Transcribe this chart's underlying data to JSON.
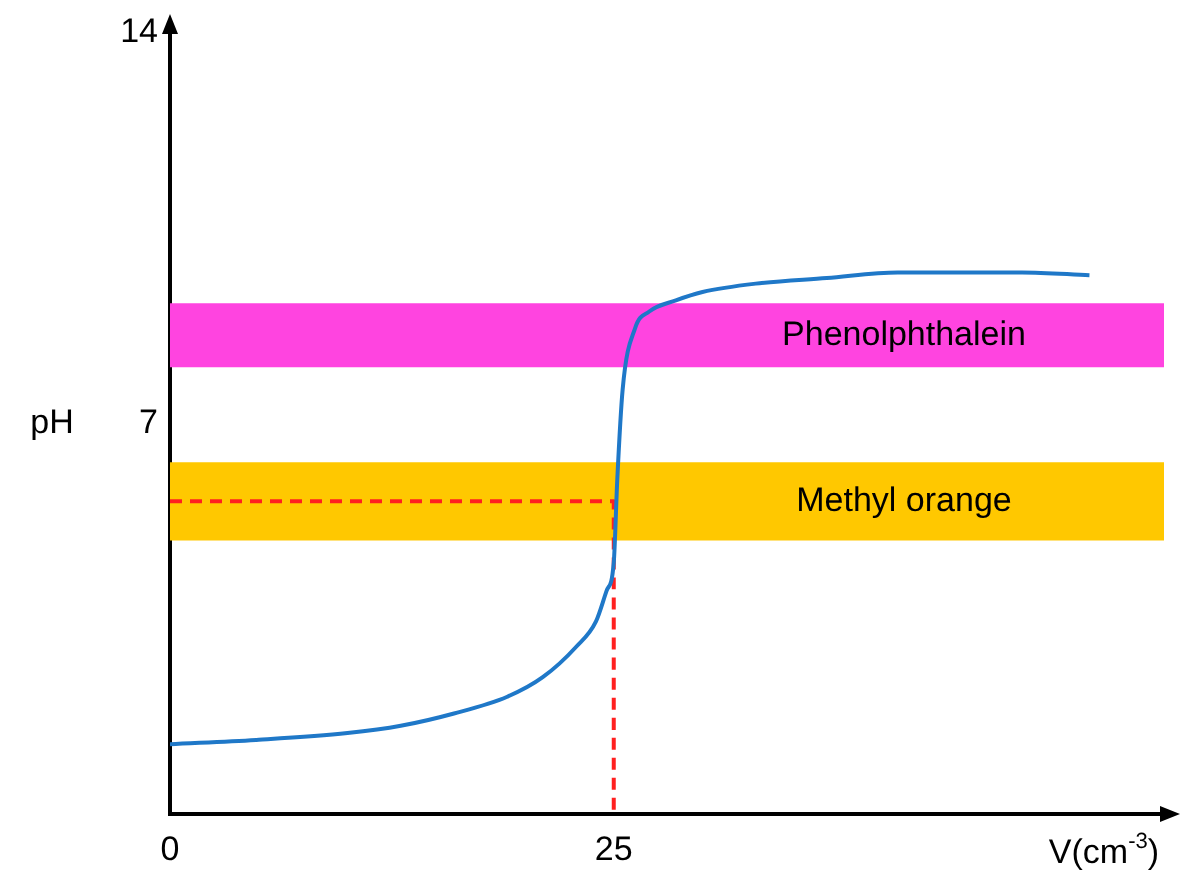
{
  "chart_data": {
    "type": "line",
    "xlabel": "V(cm$^{-3}$)",
    "ylabel": "pH",
    "xlim": [
      0,
      56
    ],
    "ylim": [
      0,
      14
    ],
    "xticks": [
      0,
      25
    ],
    "yticks": [
      7,
      14
    ],
    "grid": false,
    "legend": false,
    "marker": "none",
    "series": [
      {
        "color": "#1f78c8",
        "line_style": "solid",
        "x": [
          0,
          5,
          10,
          13,
          16,
          19,
          21,
          22.9,
          24,
          24.6,
          25,
          25.2,
          25.5,
          26.2,
          27,
          28.5,
          30,
          33,
          37,
          41,
          45,
          48,
          51.8
        ],
        "values": [
          1.25,
          1.33,
          1.45,
          1.58,
          1.8,
          2.1,
          2.45,
          3.0,
          3.45,
          4.0,
          4.5,
          6.0,
          7.6,
          8.7,
          9.0,
          9.2,
          9.35,
          9.5,
          9.6,
          9.7,
          9.7,
          9.7,
          9.65
        ]
      },
      {
        "color": "#ff2020",
        "line_style": "dashed",
        "x": [
          0,
          25,
          25
        ],
        "values": [
          5.6,
          5.6,
          0
        ]
      }
    ],
    "bands": [
      {
        "axis": "y",
        "from": 8.0,
        "to": 9.15,
        "label": "Phenolphthalein",
        "color": "#ff44e0"
      },
      {
        "axis": "y",
        "from": 4.9,
        "to": 6.3,
        "label": "Methyl orange",
        "color": "#ffc800"
      }
    ]
  }
}
